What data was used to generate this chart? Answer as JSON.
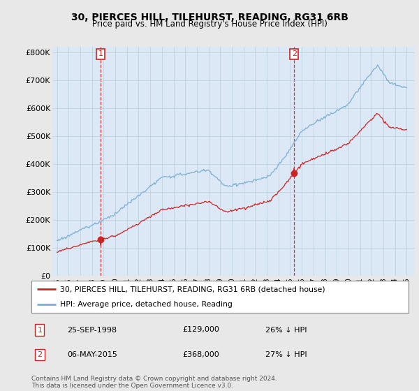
{
  "title": "30, PIERCES HILL, TILEHURST, READING, RG31 6RB",
  "subtitle": "Price paid vs. HM Land Registry's House Price Index (HPI)",
  "ylim": [
    0,
    820000
  ],
  "yticks": [
    0,
    100000,
    200000,
    300000,
    400000,
    500000,
    600000,
    700000,
    800000
  ],
  "ytick_labels": [
    "£0",
    "£100K",
    "£200K",
    "£300K",
    "£400K",
    "£500K",
    "£600K",
    "£700K",
    "£800K"
  ],
  "hpi_color": "#7aafd4",
  "price_color": "#cc2222",
  "sale1_year": 1998.73,
  "sale1_price": 129000,
  "sale2_year": 2015.35,
  "sale2_price": 368000,
  "legend_label1": "30, PIERCES HILL, TILEHURST, READING, RG31 6RB (detached house)",
  "legend_label2": "HPI: Average price, detached house, Reading",
  "footer": "Contains HM Land Registry data © Crown copyright and database right 2024.\nThis data is licensed under the Open Government Licence v3.0.",
  "background_color": "#e8e8e8",
  "plot_bg_color": "#dce8f5",
  "grid_color": "#b8cfe0"
}
